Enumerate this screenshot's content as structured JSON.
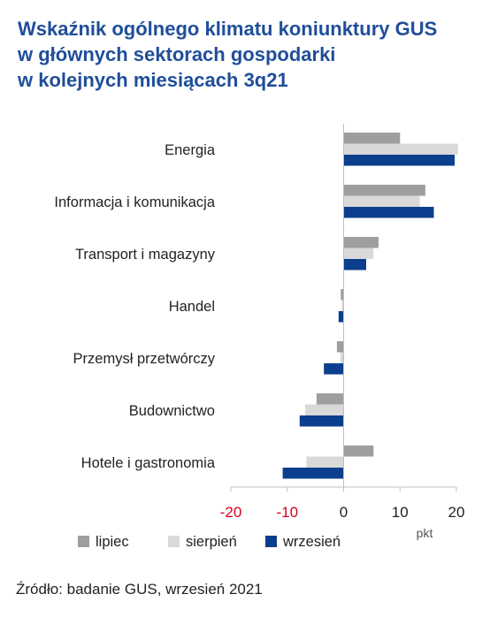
{
  "title": {
    "line1": "Wskaźnik ogólnego klimatu koniunktury GUS",
    "line2": "w głównych sektorach gospodarki",
    "line3": "w kolejnych miesiącach 3q21"
  },
  "source": "Źródło: badanie GUS, wrzesień 2021",
  "chart_data": {
    "type": "bar",
    "orientation": "horizontal",
    "categories": [
      "Energia",
      "Informacja i komunikacja",
      "Transport i magazyny",
      "Handel",
      "Przemysł przetwórczy",
      "Budownictwo",
      "Hotele i gastronomia"
    ],
    "series": [
      {
        "name": "lipiec",
        "color": "#9e9e9e",
        "values": [
          10.0,
          14.5,
          6.2,
          -0.5,
          -1.2,
          -4.8,
          5.3
        ]
      },
      {
        "name": "sierpień",
        "color": "#d9d9d9",
        "values": [
          20.3,
          13.5,
          5.3,
          -0.3,
          -0.6,
          -6.8,
          -6.6
        ]
      },
      {
        "name": "wrzesień",
        "color": "#0b3f8e",
        "values": [
          19.7,
          16.0,
          4.0,
          -0.9,
          -3.5,
          -7.8,
          -10.8
        ]
      }
    ],
    "xlim": [
      -20,
      20
    ],
    "xticks": [
      -20,
      -10,
      0,
      10,
      20
    ],
    "negative_tick_color": "#d0021b",
    "xlabel": "pkt",
    "legend_position": "bottom",
    "grid": false
  }
}
